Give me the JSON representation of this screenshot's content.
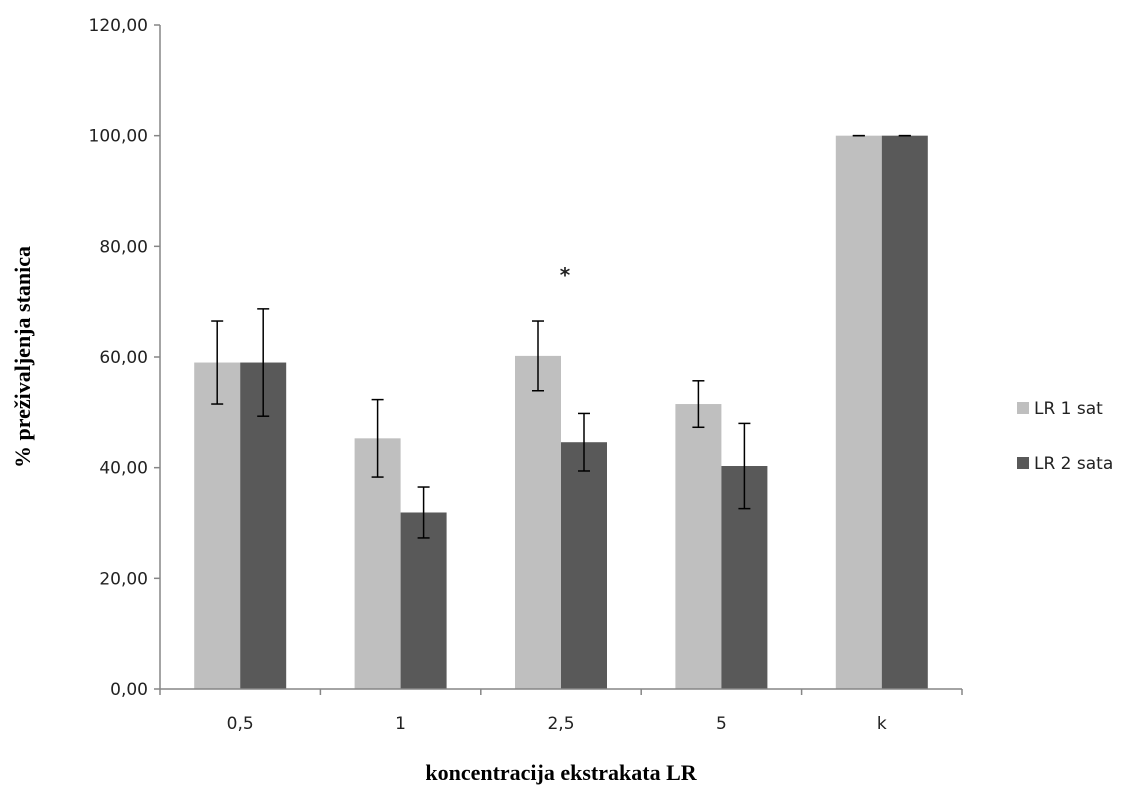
{
  "chart_data": {
    "type": "bar",
    "categories": [
      "0,5",
      "1",
      "2,5",
      "5",
      "k"
    ],
    "series": [
      {
        "name": "LR 1 sat",
        "color": "#bfbfbf",
        "values": [
          59.0,
          45.3,
          60.2,
          51.5,
          100.0
        ],
        "errors": [
          7.5,
          7.0,
          6.3,
          4.2,
          0.0
        ]
      },
      {
        "name": "LR 2 sata",
        "color": "#595959",
        "values": [
          59.0,
          31.9,
          44.6,
          40.3,
          100.0
        ],
        "errors": [
          9.7,
          4.6,
          5.2,
          7.7,
          0.0
        ]
      }
    ],
    "xlabel": "koncentracija ekstrakata LR",
    "ylabel": "%  preživaljenja stanica",
    "ylim": [
      0,
      120
    ],
    "yticks": [
      "0,00",
      "20,00",
      "40,00",
      "60,00",
      "80,00",
      "100,00",
      "120,00"
    ],
    "grid": false,
    "legend_position": "right",
    "annotations": [
      {
        "text": "*",
        "category": "2,5"
      }
    ]
  }
}
